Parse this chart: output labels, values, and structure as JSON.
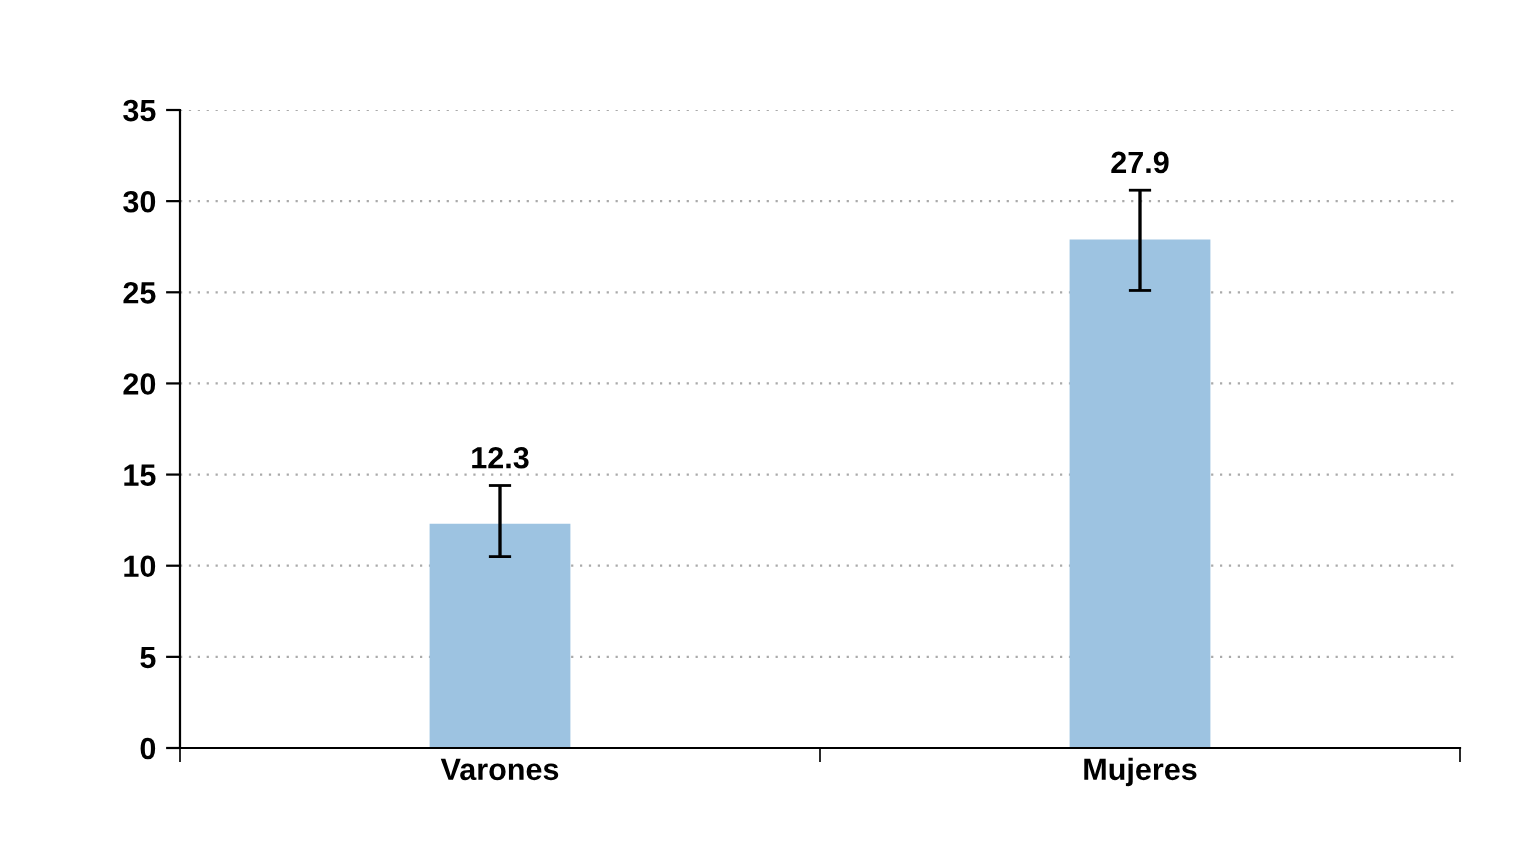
{
  "chart_data": {
    "type": "bar",
    "categories": [
      "Varones",
      "Mujeres"
    ],
    "values": [
      12.3,
      27.9
    ],
    "errors": [
      [
        10.5,
        14.4
      ],
      [
        25.1,
        30.6
      ]
    ],
    "color": "#9dc3e1",
    "ylim": [
      0,
      35
    ],
    "yticks": [
      0,
      5,
      10,
      15,
      20,
      25,
      30,
      35
    ],
    "grid": "y",
    "data_labels": true
  }
}
